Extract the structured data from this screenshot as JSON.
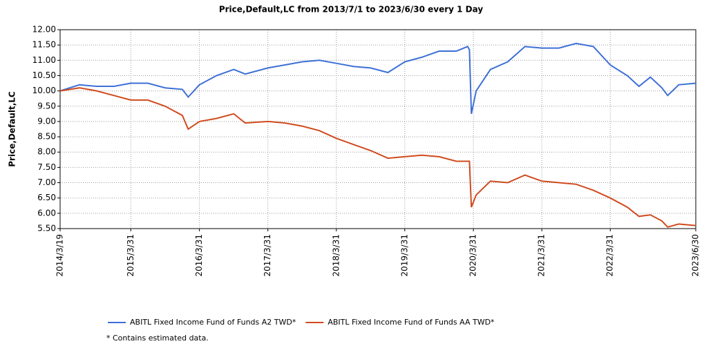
{
  "chart_data": {
    "type": "line",
    "title": "Price,Default,LC from 2013/7/1 to 2023/6/30 every 1 Day",
    "y_label": "Price,Default,LC",
    "note": "*  Contains estimated data.",
    "grid": true,
    "x": [
      "2014/3/19",
      "2014/6/30",
      "2014/9/30",
      "2014/12/31",
      "2015/3/31",
      "2015/6/30",
      "2015/9/30",
      "2015/12/31",
      "2016/1/31",
      "2016/3/31",
      "2016/6/30",
      "2016/9/30",
      "2016/11/30",
      "2017/3/31",
      "2017/6/30",
      "2017/9/30",
      "2017/12/31",
      "2018/3/31",
      "2018/6/30",
      "2018/9/30",
      "2018/12/31",
      "2019/3/31",
      "2019/6/30",
      "2019/9/30",
      "2019/12/31",
      "2020/2/29",
      "2020/3/10",
      "2020/3/20",
      "2020/4/15",
      "2020/6/30",
      "2020/9/30",
      "2020/12/31",
      "2021/3/31",
      "2021/6/30",
      "2021/9/30",
      "2021/12/31",
      "2022/3/31",
      "2022/6/30",
      "2022/8/31",
      "2022/10/31",
      "2022/12/31",
      "2023/1/31",
      "2023/3/31",
      "2023/6/30"
    ],
    "series": [
      {
        "name": "ABITL Fixed Income Fund of Funds A2 TWD*",
        "color": "#3c6fd6",
        "values": [
          10.0,
          10.2,
          10.15,
          10.15,
          10.25,
          10.25,
          10.1,
          10.05,
          9.8,
          10.2,
          10.5,
          10.7,
          10.55,
          10.75,
          10.85,
          10.95,
          11.0,
          10.9,
          10.8,
          10.75,
          10.6,
          10.95,
          11.1,
          11.3,
          11.3,
          11.45,
          11.35,
          9.25,
          10.0,
          10.7,
          10.95,
          11.45,
          11.4,
          11.4,
          11.55,
          11.45,
          10.85,
          10.5,
          10.15,
          10.45,
          10.1,
          9.85,
          10.2,
          10.25
        ]
      },
      {
        "name": "ABITL Fixed Income Fund of Funds AA TWD*",
        "color": "#d04a1c",
        "values": [
          10.0,
          10.1,
          10.0,
          9.85,
          9.7,
          9.7,
          9.5,
          9.2,
          8.75,
          9.0,
          9.1,
          9.25,
          8.95,
          9.0,
          8.95,
          8.85,
          8.7,
          8.45,
          8.25,
          8.05,
          7.8,
          7.85,
          7.9,
          7.85,
          7.7,
          7.7,
          7.7,
          6.2,
          6.6,
          7.05,
          7.0,
          7.25,
          7.05,
          7.0,
          6.95,
          6.75,
          6.5,
          6.2,
          5.9,
          5.95,
          5.75,
          5.55,
          5.65,
          5.6
        ]
      }
    ],
    "xlim": [
      "2014/3/19",
      "2023/6/30"
    ],
    "xticks": [
      "2014/3/19",
      "2015/3/31",
      "2016/3/31",
      "2017/3/31",
      "2018/3/31",
      "2019/3/31",
      "2020/3/31",
      "2021/3/31",
      "2022/3/31",
      "2023/6/30"
    ],
    "ylim": [
      5.5,
      12
    ],
    "yticks": [
      {
        "value": 5.5,
        "label": "5.50"
      },
      {
        "value": 6,
        "label": "6.00"
      },
      {
        "value": 6.5,
        "label": "6.50"
      },
      {
        "value": 7,
        "label": "7.00"
      },
      {
        "value": 7.5,
        "label": "7.50"
      },
      {
        "value": 8,
        "label": "8.00"
      },
      {
        "value": 8.5,
        "label": "8.50"
      },
      {
        "value": 9,
        "label": "9.00"
      },
      {
        "value": 9.5,
        "label": "9.50"
      },
      {
        "value": 10,
        "label": "10.00"
      },
      {
        "value": 10.5,
        "label": "10.50"
      },
      {
        "value": 11,
        "label": "11.00"
      },
      {
        "value": 11.5,
        "label": "11.50"
      },
      {
        "value": 12,
        "label": "12.00"
      }
    ]
  }
}
